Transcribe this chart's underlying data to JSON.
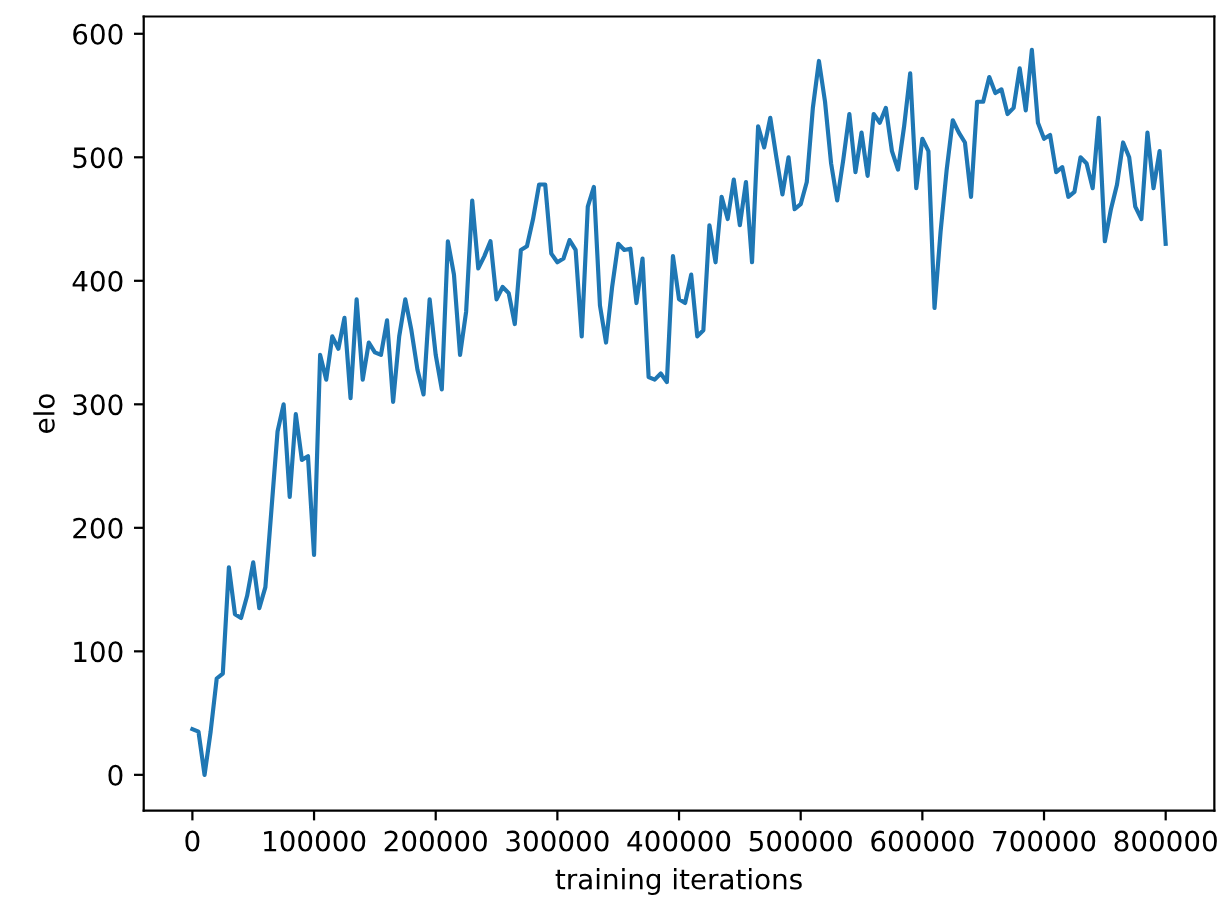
{
  "chart_data": {
    "type": "line",
    "xlabel": "training iterations",
    "ylabel": "elo",
    "xlim": [
      -40000,
      840000
    ],
    "xticks": [
      0,
      100000,
      200000,
      300000,
      400000,
      500000,
      600000,
      700000,
      800000
    ],
    "ylim": [
      -29,
      614
    ],
    "yticks": [
      0,
      100,
      200,
      300,
      400,
      500,
      600
    ],
    "grid": false,
    "legend": false,
    "x": [
      0,
      5000,
      10000,
      15000,
      20000,
      25000,
      30000,
      35000,
      40000,
      45000,
      50000,
      55000,
      60000,
      65000,
      70000,
      75000,
      80000,
      85000,
      90000,
      95000,
      100000,
      105000,
      110000,
      115000,
      120000,
      125000,
      130000,
      135000,
      140000,
      145000,
      150000,
      155000,
      160000,
      165000,
      170000,
      175000,
      180000,
      185000,
      190000,
      195000,
      200000,
      205000,
      210000,
      215000,
      220000,
      225000,
      230000,
      235000,
      240000,
      245000,
      250000,
      255000,
      260000,
      265000,
      270000,
      275000,
      280000,
      285000,
      290000,
      295000,
      300000,
      305000,
      310000,
      315000,
      320000,
      325000,
      330000,
      335000,
      340000,
      345000,
      350000,
      355000,
      360000,
      365000,
      370000,
      375000,
      380000,
      385000,
      390000,
      395000,
      400000,
      405000,
      410000,
      415000,
      420000,
      425000,
      430000,
      435000,
      440000,
      445000,
      450000,
      455000,
      460000,
      465000,
      470000,
      475000,
      480000,
      485000,
      490000,
      495000,
      500000,
      505000,
      510000,
      515000,
      520000,
      525000,
      530000,
      535000,
      540000,
      545000,
      550000,
      555000,
      560000,
      565000,
      570000,
      575000,
      580000,
      585000,
      590000,
      595000,
      600000,
      605000,
      610000,
      615000,
      620000,
      625000,
      630000,
      635000,
      640000,
      645000,
      650000,
      655000,
      660000,
      665000,
      670000,
      675000,
      680000,
      685000,
      690000,
      695000,
      700000,
      705000,
      710000,
      715000,
      720000,
      725000,
      730000,
      735000,
      740000,
      745000,
      750000,
      755000,
      760000,
      765000,
      770000,
      775000,
      780000,
      785000,
      790000,
      795000,
      800000
    ],
    "series": [
      {
        "color": "#1f77b4",
        "values": [
          37,
          35,
          0,
          35,
          78,
          82,
          168,
          130,
          127,
          145,
          172,
          135,
          152,
          215,
          278,
          300,
          225,
          292,
          255,
          258,
          178,
          340,
          320,
          355,
          345,
          370,
          305,
          385,
          320,
          350,
          342,
          340,
          368,
          302,
          355,
          385,
          360,
          328,
          308,
          385,
          340,
          312,
          432,
          405,
          340,
          375,
          465,
          410,
          420,
          432,
          385,
          395,
          390,
          365,
          425,
          428,
          450,
          478,
          478,
          422,
          415,
          418,
          433,
          425,
          355,
          460,
          476,
          380,
          350,
          395,
          430,
          425,
          426,
          382,
          418,
          322,
          320,
          325,
          318,
          420,
          385,
          382,
          405,
          355,
          360,
          445,
          415,
          468,
          450,
          482,
          445,
          480,
          415,
          525,
          508,
          532,
          500,
          470,
          500,
          458,
          462,
          480,
          540,
          578,
          545,
          495,
          465,
          498,
          535,
          488,
          520,
          485,
          535,
          528,
          540,
          505,
          490,
          525,
          568,
          475,
          515,
          505,
          378,
          440,
          490,
          530,
          520,
          512,
          468,
          545,
          545,
          565,
          552,
          555,
          535,
          540,
          572,
          538,
          587,
          528,
          515,
          518,
          488,
          492,
          468,
          472,
          500,
          495,
          475,
          532,
          432,
          458,
          478,
          512,
          500,
          460,
          450,
          520,
          475,
          505,
          430
        ]
      }
    ]
  }
}
